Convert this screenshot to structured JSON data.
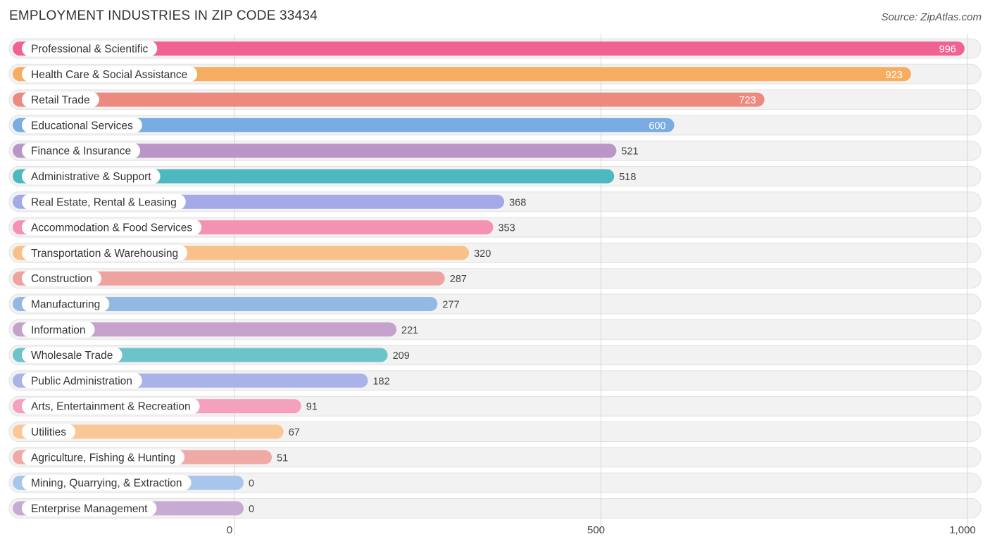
{
  "title": "EMPLOYMENT INDUSTRIES IN ZIP CODE 33434",
  "source": "Source: ZipAtlas.com",
  "chart_data": {
    "type": "bar",
    "orientation": "horizontal",
    "title": "EMPLOYMENT INDUSTRIES IN ZIP CODE 33434",
    "xlabel": "",
    "ylabel": "",
    "xlim": [
      0,
      1000
    ],
    "xticks": [
      0,
      500,
      1000
    ],
    "xtick_labels": [
      "0",
      "500",
      "1,000"
    ],
    "grid": true,
    "categories": [
      "Professional & Scientific",
      "Health Care & Social Assistance",
      "Retail Trade",
      "Educational Services",
      "Finance & Insurance",
      "Administrative & Support",
      "Real Estate, Rental & Leasing",
      "Accommodation & Food Services",
      "Transportation & Warehousing",
      "Construction",
      "Manufacturing",
      "Information",
      "Wholesale Trade",
      "Public Administration",
      "Arts, Entertainment & Recreation",
      "Utilities",
      "Agriculture, Fishing & Hunting",
      "Mining, Quarrying, & Extraction",
      "Enterprise Management"
    ],
    "values": [
      996,
      923,
      723,
      600,
      521,
      518,
      368,
      353,
      320,
      287,
      277,
      221,
      209,
      182,
      91,
      67,
      51,
      0,
      0
    ],
    "value_labels": [
      "996",
      "923",
      "723",
      "600",
      "521",
      "518",
      "368",
      "353",
      "320",
      "287",
      "277",
      "221",
      "209",
      "182",
      "91",
      "67",
      "51",
      "0",
      "0"
    ],
    "colors": [
      "#f06292",
      "#f6ad60",
      "#ec8a80",
      "#7aace4",
      "#ba96c8",
      "#4cb8c0",
      "#a4a9e8",
      "#f592b3",
      "#f9c08a",
      "#eea39e",
      "#94b8e4",
      "#c4a2cc",
      "#6cc3c8",
      "#aab2ea",
      "#f5a0bc",
      "#f9c896",
      "#efaaa6",
      "#a8c6ec",
      "#c8abd3"
    ]
  }
}
